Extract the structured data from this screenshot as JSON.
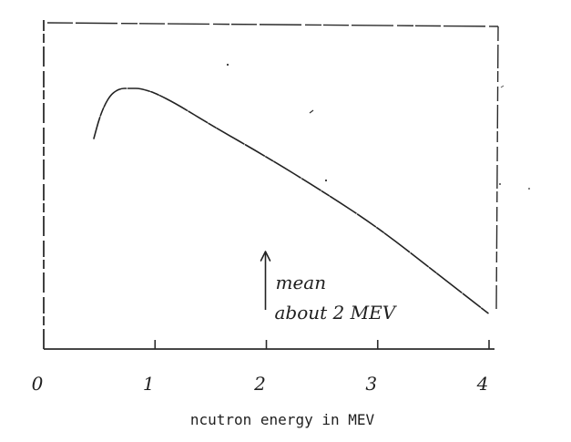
{
  "chart_data": {
    "type": "line",
    "title": "",
    "xlabel": "ncutron energy in MEV",
    "ylabel": "",
    "xlim": [
      0,
      4
    ],
    "ylim": [
      0,
      1
    ],
    "x_ticks": [
      0,
      1,
      2,
      3,
      4
    ],
    "x_tick_labels": [
      "0",
      "1",
      "2",
      "3",
      "4"
    ],
    "grid": false,
    "series": [
      {
        "x": [
          0.45,
          0.5,
          0.55,
          0.6,
          0.65,
          0.7,
          0.75,
          0.8,
          0.85,
          0.9,
          1.0,
          1.2,
          1.5,
          2.0,
          2.5,
          3.0,
          3.5,
          4.0
        ],
        "y": [
          0.78,
          0.87,
          0.93,
          0.97,
          0.99,
          1.0,
          1.0,
          1.0,
          1.0,
          0.995,
          0.98,
          0.93,
          0.84,
          0.7,
          0.55,
          0.39,
          0.2,
          0.01
        ]
      }
    ],
    "annotations": [
      {
        "line1": "mean",
        "line2": "about 2 MEV",
        "x": 2.0
      }
    ]
  }
}
